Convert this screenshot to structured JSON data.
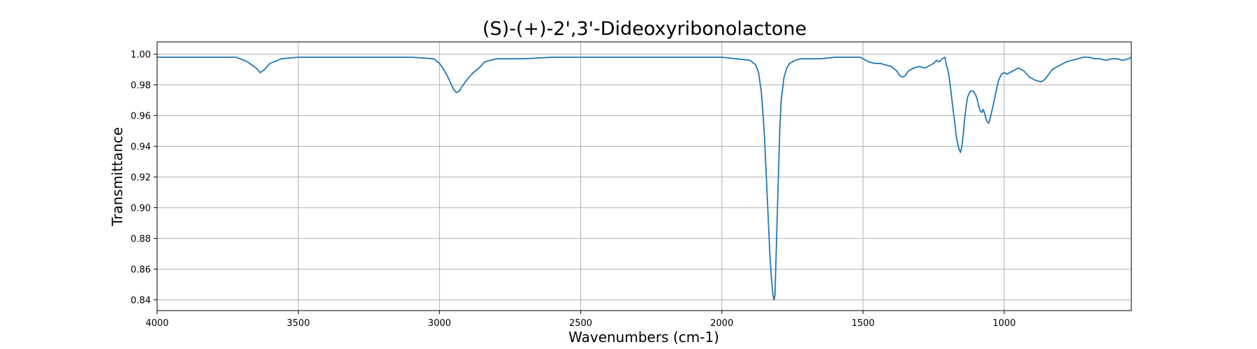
{
  "chart_data": {
    "type": "line",
    "title": "(S)-(+)-2',3'-Dideoxyribonolactone",
    "xlabel": "Wavenumbers (cm-1)",
    "ylabel": "Transmittance",
    "xlim": [
      4000,
      550
    ],
    "ylim": [
      0.833,
      1.008
    ],
    "x_reversed": true,
    "grid": true,
    "xticks": [
      4000,
      3500,
      3000,
      2500,
      2000,
      1500,
      1000
    ],
    "xtick_labels": [
      "4000",
      "3500",
      "3000",
      "2500",
      "2000",
      "1500",
      "1000"
    ],
    "yticks": [
      0.84,
      0.86,
      0.88,
      0.9,
      0.92,
      0.94,
      0.96,
      0.98,
      1.0
    ],
    "ytick_labels": [
      "0.84",
      "0.86",
      "0.88",
      "0.90",
      "0.92",
      "0.94",
      "0.96",
      "0.98",
      "1.00"
    ],
    "line_color": "#1f77b4",
    "series": [
      {
        "x": [
          4000,
          3900,
          3800,
          3720,
          3680,
          3650,
          3635,
          3620,
          3600,
          3560,
          3500,
          3400,
          3300,
          3200,
          3100,
          3020,
          3000,
          2985,
          2970,
          2960,
          2950,
          2940,
          2930,
          2920,
          2900,
          2880,
          2860,
          2840,
          2800,
          2700,
          2600,
          2500,
          2400,
          2300,
          2200,
          2100,
          2000,
          1950,
          1900,
          1880,
          1870,
          1860,
          1850,
          1840,
          1830,
          1825,
          1820,
          1817,
          1815,
          1812,
          1810,
          1806,
          1800,
          1795,
          1790,
          1780,
          1770,
          1760,
          1740,
          1720,
          1700,
          1650,
          1600,
          1550,
          1510,
          1500,
          1480,
          1460,
          1440,
          1420,
          1400,
          1380,
          1370,
          1360,
          1350,
          1340,
          1320,
          1300,
          1280,
          1260,
          1250,
          1240,
          1230,
          1220,
          1210,
          1205,
          1200,
          1195,
          1190,
          1185,
          1180,
          1175,
          1170,
          1165,
          1160,
          1155,
          1150,
          1145,
          1140,
          1135,
          1130,
          1120,
          1110,
          1100,
          1095,
          1090,
          1085,
          1080,
          1075,
          1070,
          1065,
          1060,
          1055,
          1050,
          1045,
          1040,
          1030,
          1020,
          1010,
          1000,
          990,
          980,
          970,
          960,
          950,
          930,
          910,
          890,
          870,
          860,
          850,
          830,
          800,
          780,
          760,
          740,
          720,
          700,
          680,
          660,
          640,
          620,
          600,
          580,
          560,
          550
        ],
        "y": [
          0.998,
          0.998,
          0.998,
          0.998,
          0.995,
          0.991,
          0.988,
          0.99,
          0.994,
          0.997,
          0.998,
          0.998,
          0.998,
          0.998,
          0.998,
          0.997,
          0.994,
          0.99,
          0.985,
          0.981,
          0.977,
          0.975,
          0.976,
          0.979,
          0.984,
          0.988,
          0.991,
          0.995,
          0.997,
          0.997,
          0.998,
          0.998,
          0.998,
          0.998,
          0.998,
          0.998,
          0.998,
          0.997,
          0.996,
          0.993,
          0.988,
          0.975,
          0.95,
          0.91,
          0.87,
          0.855,
          0.845,
          0.841,
          0.84,
          0.843,
          0.855,
          0.88,
          0.92,
          0.95,
          0.97,
          0.985,
          0.991,
          0.994,
          0.996,
          0.997,
          0.997,
          0.997,
          0.998,
          0.998,
          0.998,
          0.997,
          0.995,
          0.994,
          0.994,
          0.993,
          0.992,
          0.989,
          0.986,
          0.985,
          0.986,
          0.989,
          0.991,
          0.992,
          0.991,
          0.993,
          0.994,
          0.996,
          0.995,
          0.997,
          0.998,
          0.993,
          0.99,
          0.985,
          0.978,
          0.97,
          0.962,
          0.955,
          0.947,
          0.942,
          0.938,
          0.936,
          0.94,
          0.948,
          0.958,
          0.966,
          0.972,
          0.976,
          0.976,
          0.973,
          0.97,
          0.966,
          0.963,
          0.962,
          0.964,
          0.962,
          0.958,
          0.956,
          0.955,
          0.958,
          0.962,
          0.966,
          0.975,
          0.983,
          0.987,
          0.988,
          0.987,
          0.988,
          0.989,
          0.99,
          0.991,
          0.989,
          0.985,
          0.983,
          0.982,
          0.983,
          0.985,
          0.99,
          0.993,
          0.995,
          0.996,
          0.997,
          0.998,
          0.998,
          0.997,
          0.997,
          0.996,
          0.997,
          0.997,
          0.996,
          0.997,
          0.998
        ]
      }
    ]
  }
}
